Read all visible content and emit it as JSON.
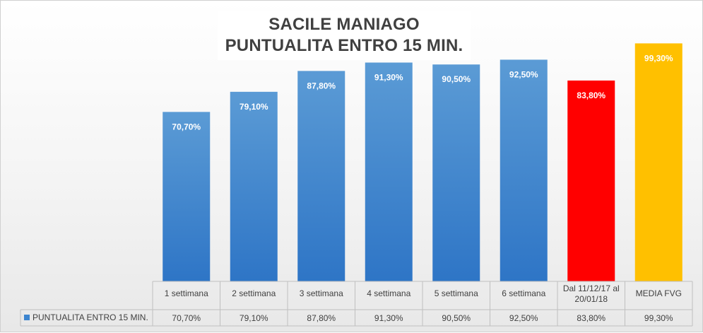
{
  "chart_data": {
    "type": "bar",
    "title": "SACILE MANIAGO",
    "subtitle": "PUNTUALITA ENTRO 15 MIN.",
    "categories": [
      "1 settimana",
      "2 settimana",
      "3 settimana",
      "4 settimana",
      "5 settimana",
      "6 settimana",
      "Dal 11/12/17 al 20/01/18",
      "MEDIA FVG"
    ],
    "series": [
      {
        "name": "PUNTUALITA ENTRO 15 MIN.",
        "values": [
          70.7,
          79.1,
          87.8,
          91.3,
          90.5,
          92.5,
          83.8,
          99.3
        ],
        "labels": [
          "70,70%",
          "79,10%",
          "87,80%",
          "91,30%",
          "90,50%",
          "92,50%",
          "83,80%",
          "99,30%"
        ],
        "colors": [
          "#3d85cf",
          "#3d85cf",
          "#3d85cf",
          "#3d85cf",
          "#3d85cf",
          "#3d85cf",
          "#ff0000",
          "#ffc000"
        ]
      }
    ],
    "ylim": [
      0,
      100
    ],
    "grid": false,
    "legend": "data-table",
    "data_table": true
  }
}
